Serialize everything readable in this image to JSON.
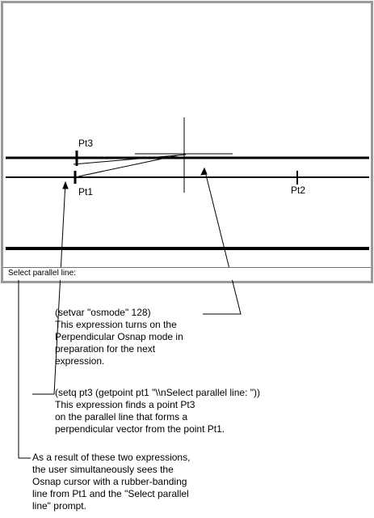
{
  "drawing": {
    "points": {
      "pt3": "Pt3",
      "pt1": "Pt1",
      "pt2": "Pt2"
    }
  },
  "command_line": {
    "prompt": "Select parallel line:"
  },
  "annotations": [
    {
      "id": "osmode",
      "lines": [
        "(setvar \"osmode\" 128)",
        "This expression turns on the",
        "Perpendicular Osnap mode in",
        "preparation for the next",
        "expression."
      ]
    },
    {
      "id": "getpoint",
      "lines": [
        "(setq pt3 (getpoint pt1 \"\\\\nSelect parallel line: \"))",
        "This expression finds a point Pt3",
        "on the parallel line that forms a",
        "perpendicular vector from the point Pt1."
      ]
    },
    {
      "id": "result",
      "lines": [
        "As a result of these two expressions,",
        "the user simultaneously sees the",
        "Osnap cursor with a rubber-banding",
        "line from Pt1 and the \"Select parallel",
        "line\" prompt."
      ]
    }
  ]
}
